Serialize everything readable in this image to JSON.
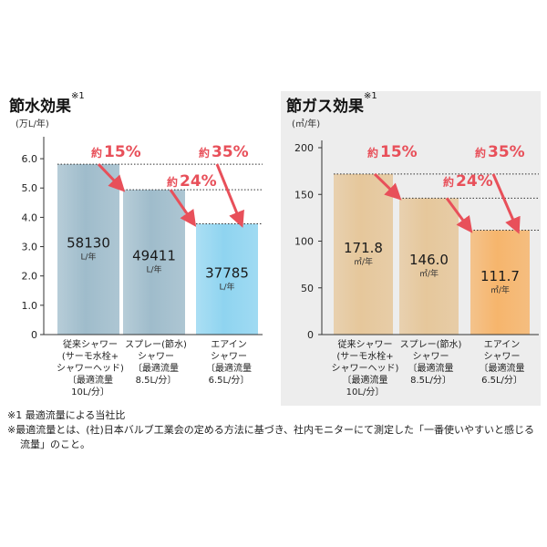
{
  "charts": [
    {
      "id": "water",
      "title": "節水効果",
      "title_note": "※1",
      "unit": "(万L/年)",
      "background": "#ffffff",
      "chart_data": {
        "type": "bar",
        "ylim": [
          0,
          6.5
        ],
        "yticks": [
          "6.0",
          "5.0",
          "4.0",
          "3.0",
          "2.0",
          "1.0",
          "0"
        ],
        "ytick_values": [
          6.0,
          5.0,
          4.0,
          3.0,
          2.0,
          1.0,
          0
        ],
        "values": [
          5.813,
          4.9411,
          3.7785
        ],
        "value_labels": [
          "58130",
          "49411",
          "37785"
        ],
        "value_units": [
          "L/年",
          "L/年",
          "L/年"
        ],
        "categories": [
          [
            "従来シャワー",
            "(サーモ水栓+",
            "シャワーヘッド)",
            "〔最適流量",
            "10L/分〕"
          ],
          [
            "スプレー(節水)",
            "シャワー",
            "〔最適流量",
            "8.5L/分〕"
          ],
          [
            "エアイン",
            "シャワー",
            "〔最適流量",
            "6.5L/分〕"
          ]
        ],
        "annotations": [
          {
            "label": "約",
            "pct": "15%",
            "from": 0,
            "to": 1
          },
          {
            "label": "約",
            "pct": "24%",
            "from": 1,
            "to": 2
          },
          {
            "label": "約",
            "pct": "35%",
            "from": 0,
            "to": 2
          }
        ],
        "colors": [
          "#9fbccb",
          "#9fbccb",
          "#8fd4f0"
        ]
      }
    },
    {
      "id": "gas",
      "title": "節ガス効果",
      "title_note": "※1",
      "unit": "(㎥/年)",
      "background": "#ededed",
      "chart_data": {
        "type": "bar",
        "ylim": [
          0,
          200
        ],
        "yticks": [
          "200",
          "150",
          "100",
          "50",
          "0"
        ],
        "ytick_values": [
          200,
          150,
          100,
          50,
          0
        ],
        "values": [
          171.8,
          146.0,
          111.7
        ],
        "value_labels": [
          "171.8",
          "146.0",
          "111.7"
        ],
        "value_units": [
          "㎥/年",
          "㎥/年",
          "㎥/年"
        ],
        "categories": [
          [
            "従来シャワー",
            "(サーモ水栓+",
            "シャワーヘッド)",
            "〔最適流量",
            "10L/分〕"
          ],
          [
            "スプレー(節水)",
            "シャワー",
            "〔最適流量",
            "8.5L/分〕"
          ],
          [
            "エアイン",
            "シャワー",
            "〔最適流量",
            "6.5L/分〕"
          ]
        ],
        "annotations": [
          {
            "label": "約",
            "pct": "15%",
            "from": 0,
            "to": 1
          },
          {
            "label": "約",
            "pct": "24%",
            "from": 1,
            "to": 2
          },
          {
            "label": "約",
            "pct": "35%",
            "from": 0,
            "to": 2
          }
        ],
        "colors": [
          "#e6c79b",
          "#e6c79b",
          "#f6b56c"
        ]
      }
    }
  ],
  "footnotes": [
    "※1 最適流量による当社比",
    "※最適流量とは、(社)日本バルブ工業会の定める方法に基づき、社内モニターにて測定した「一番使いやすいと感じる流量」のこと。"
  ],
  "annotation_color": "#e8505a"
}
